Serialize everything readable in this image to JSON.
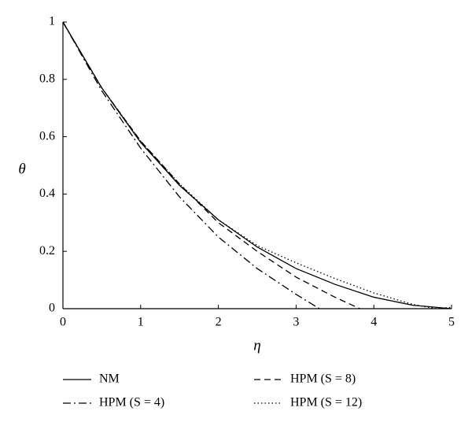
{
  "chart_data": {
    "type": "line",
    "xlabel": "η",
    "ylabel": "θ",
    "xlim": [
      0,
      5
    ],
    "ylim": [
      0,
      1
    ],
    "xticks": [
      0,
      1,
      2,
      3,
      4,
      5
    ],
    "yticks": [
      0,
      0.2,
      0.4,
      0.6,
      0.8,
      1
    ],
    "series": [
      {
        "name": "NM",
        "color": "#000000",
        "style": "solid",
        "x": [
          0,
          0.5,
          1,
          1.5,
          2,
          2.5,
          3,
          3.5,
          4,
          4.5,
          5
        ],
        "values": [
          1,
          0.77,
          0.58,
          0.43,
          0.31,
          0.215,
          0.14,
          0.085,
          0.04,
          0.012,
          0
        ]
      },
      {
        "name": "HPM (S = 4)",
        "color": "#000000",
        "style": "dashdot",
        "x": [
          0,
          0.5,
          1,
          1.5,
          2,
          2.5,
          3,
          3.3
        ],
        "values": [
          1,
          0.76,
          0.56,
          0.39,
          0.25,
          0.14,
          0.05,
          0
        ]
      },
      {
        "name": "HPM (S = 8)",
        "color": "#000000",
        "style": "dashed",
        "x": [
          0,
          0.5,
          1,
          1.5,
          2,
          2.5,
          3,
          3.5,
          3.82
        ],
        "values": [
          1,
          0.77,
          0.585,
          0.435,
          0.3,
          0.2,
          0.11,
          0.04,
          0
        ]
      },
      {
        "name": "HPM (S = 12)",
        "color": "#000000",
        "style": "dotted",
        "x": [
          0,
          0.5,
          1,
          1.5,
          2,
          2.5,
          3,
          3.5,
          4,
          4.5,
          4.8,
          5
        ],
        "values": [
          1,
          0.77,
          0.585,
          0.435,
          0.31,
          0.22,
          0.16,
          0.105,
          0.055,
          0.015,
          0,
          0.005
        ]
      }
    ]
  }
}
